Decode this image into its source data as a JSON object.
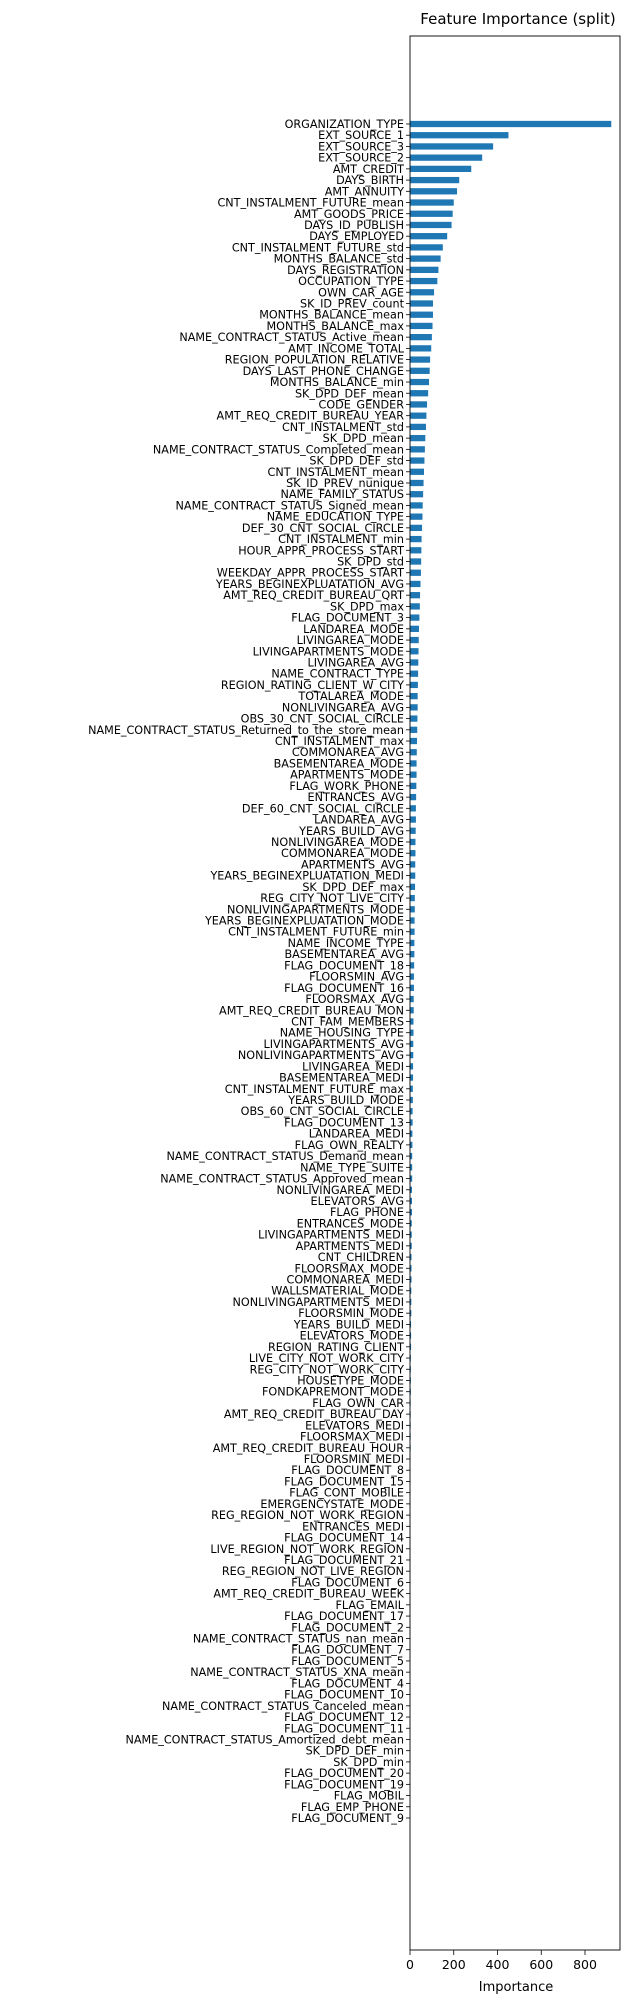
{
  "chart_data": {
    "type": "bar",
    "orientation": "horizontal",
    "title": "Feature Importance (split)",
    "xlabel": "Importance",
    "ylabel": "",
    "xlim": [
      0,
      960
    ],
    "xticks": [
      0,
      200,
      400,
      600,
      800
    ],
    "xtick_labels": [
      "0",
      "200",
      "400",
      "600",
      "800"
    ],
    "grid": false,
    "legend": "none",
    "bar_color": "#1f77b4",
    "categories": [
      "ORGANIZATION_TYPE",
      "EXT_SOURCE_1",
      "EXT_SOURCE_3",
      "EXT_SOURCE_2",
      "AMT_CREDIT",
      "DAYS_BIRTH",
      "AMT_ANNUITY",
      "CNT_INSTALMENT_FUTURE_mean",
      "AMT_GOODS_PRICE",
      "DAYS_ID_PUBLISH",
      "DAYS_EMPLOYED",
      "CNT_INSTALMENT_FUTURE_std",
      "MONTHS_BALANCE_std",
      "DAYS_REGISTRATION",
      "OCCUPATION_TYPE",
      "OWN_CAR_AGE",
      "SK_ID_PREV_count",
      "MONTHS_BALANCE_mean",
      "MONTHS_BALANCE_max",
      "NAME_CONTRACT_STATUS_Active_mean",
      "AMT_INCOME_TOTAL",
      "REGION_POPULATION_RELATIVE",
      "DAYS_LAST_PHONE_CHANGE",
      "MONTHS_BALANCE_min",
      "SK_DPD_DEF_mean",
      "CODE_GENDER",
      "AMT_REQ_CREDIT_BUREAU_YEAR",
      "CNT_INSTALMENT_std",
      "SK_DPD_mean",
      "NAME_CONTRACT_STATUS_Completed_mean",
      "SK_DPD_DEF_std",
      "CNT_INSTALMENT_mean",
      "SK_ID_PREV_nunique",
      "NAME_FAMILY_STATUS",
      "NAME_CONTRACT_STATUS_Signed_mean",
      "NAME_EDUCATION_TYPE",
      "DEF_30_CNT_SOCIAL_CIRCLE",
      "CNT_INSTALMENT_min",
      "HOUR_APPR_PROCESS_START",
      "SK_DPD_std",
      "WEEKDAY_APPR_PROCESS_START",
      "YEARS_BEGINEXPLUATATION_AVG",
      "AMT_REQ_CREDIT_BUREAU_QRT",
      "SK_DPD_max",
      "FLAG_DOCUMENT_3",
      "LANDAREA_MODE",
      "LIVINGAREA_MODE",
      "LIVINGAPARTMENTS_MODE",
      "LIVINGAREA_AVG",
      "NAME_CONTRACT_TYPE",
      "REGION_RATING_CLIENT_W_CITY",
      "TOTALAREA_MODE",
      "NONLIVINGAREA_AVG",
      "OBS_30_CNT_SOCIAL_CIRCLE",
      "NAME_CONTRACT_STATUS_Returned_to_the_store_mean",
      "CNT_INSTALMENT_max",
      "COMMONAREA_AVG",
      "BASEMENTAREA_MODE",
      "APARTMENTS_MODE",
      "FLAG_WORK_PHONE",
      "ENTRANCES_AVG",
      "DEF_60_CNT_SOCIAL_CIRCLE",
      "LANDAREA_AVG",
      "YEARS_BUILD_AVG",
      "NONLIVINGAREA_MODE",
      "COMMONAREA_MODE",
      "APARTMENTS_AVG",
      "YEARS_BEGINEXPLUATATION_MEDI",
      "SK_DPD_DEF_max",
      "REG_CITY_NOT_LIVE_CITY",
      "NONLIVINGAPARTMENTS_MODE",
      "YEARS_BEGINEXPLUATATION_MODE",
      "CNT_INSTALMENT_FUTURE_min",
      "NAME_INCOME_TYPE",
      "BASEMENTAREA_AVG",
      "FLAG_DOCUMENT_18",
      "FLOORSMIN_AVG",
      "FLAG_DOCUMENT_16",
      "FLOORSMAX_AVG",
      "AMT_REQ_CREDIT_BUREAU_MON",
      "CNT_FAM_MEMBERS",
      "NAME_HOUSING_TYPE",
      "LIVINGAPARTMENTS_AVG",
      "NONLIVINGAPARTMENTS_AVG",
      "LIVINGAREA_MEDI",
      "BASEMENTAREA_MEDI",
      "CNT_INSTALMENT_FUTURE_max",
      "YEARS_BUILD_MODE",
      "OBS_60_CNT_SOCIAL_CIRCLE",
      "FLAG_DOCUMENT_13",
      "LANDAREA_MEDI",
      "FLAG_OWN_REALTY",
      "NAME_CONTRACT_STATUS_Demand_mean",
      "NAME_TYPE_SUITE",
      "NAME_CONTRACT_STATUS_Approved_mean",
      "NONLIVINGAREA_MEDI",
      "ELEVATORS_AVG",
      "FLAG_PHONE",
      "ENTRANCES_MODE",
      "LIVINGAPARTMENTS_MEDI",
      "APARTMENTS_MEDI",
      "CNT_CHILDREN",
      "FLOORSMAX_MODE",
      "COMMONAREA_MEDI",
      "WALLSMATERIAL_MODE",
      "NONLIVINGAPARTMENTS_MEDI",
      "FLOORSMIN_MODE",
      "YEARS_BUILD_MEDI",
      "ELEVATORS_MODE",
      "REGION_RATING_CLIENT",
      "LIVE_CITY_NOT_WORK_CITY",
      "REG_CITY_NOT_WORK_CITY",
      "HOUSETYPE_MODE",
      "FONDKAPREMONT_MODE",
      "FLAG_OWN_CAR",
      "AMT_REQ_CREDIT_BUREAU_DAY",
      "ELEVATORS_MEDI",
      "FLOORSMAX_MEDI",
      "AMT_REQ_CREDIT_BUREAU_HOUR",
      "FLOORSMIN_MEDI",
      "FLAG_DOCUMENT_8",
      "FLAG_DOCUMENT_15",
      "FLAG_CONT_MOBILE",
      "EMERGENCYSTATE_MODE",
      "REG_REGION_NOT_WORK_REGION",
      "ENTRANCES_MEDI",
      "FLAG_DOCUMENT_14",
      "LIVE_REGION_NOT_WORK_REGION",
      "FLAG_DOCUMENT_21",
      "REG_REGION_NOT_LIVE_REGION",
      "FLAG_DOCUMENT_6",
      "AMT_REQ_CREDIT_BUREAU_WEEK",
      "FLAG_EMAIL",
      "FLAG_DOCUMENT_17",
      "FLAG_DOCUMENT_2",
      "NAME_CONTRACT_STATUS_nan_mean",
      "FLAG_DOCUMENT_7",
      "FLAG_DOCUMENT_5",
      "NAME_CONTRACT_STATUS_XNA_mean",
      "FLAG_DOCUMENT_4",
      "FLAG_DOCUMENT_10",
      "NAME_CONTRACT_STATUS_Canceled_mean",
      "FLAG_DOCUMENT_12",
      "FLAG_DOCUMENT_11",
      "NAME_CONTRACT_STATUS_Amortized_debt_mean",
      "SK_DPD_DEF_min",
      "SK_DPD_min",
      "FLAG_DOCUMENT_20",
      "FLAG_DOCUMENT_19",
      "FLAG_MOBIL",
      "FLAG_EMP_PHONE",
      "FLAG_DOCUMENT_9"
    ],
    "values": [
      920,
      450,
      380,
      330,
      280,
      225,
      215,
      200,
      195,
      190,
      170,
      150,
      140,
      130,
      125,
      110,
      105,
      105,
      103,
      100,
      97,
      92,
      90,
      87,
      83,
      78,
      75,
      73,
      70,
      68,
      66,
      64,
      62,
      60,
      58,
      57,
      55,
      53,
      52,
      51,
      50,
      48,
      46,
      45,
      43,
      41,
      40,
      39,
      38,
      37,
      36,
      35,
      35,
      34,
      33,
      32,
      31,
      30,
      30,
      29,
      28,
      27,
      27,
      26,
      25,
      25,
      24,
      24,
      23,
      22,
      22,
      21,
      21,
      20,
      20,
      19,
      18,
      18,
      17,
      17,
      16,
      16,
      15,
      15,
      14,
      14,
      13,
      13,
      12,
      12,
      11,
      11,
      10,
      10,
      10,
      9,
      9,
      9,
      8,
      8,
      8,
      7,
      7,
      7,
      6,
      6,
      6,
      5,
      5,
      5,
      4,
      4,
      4,
      4,
      3,
      3,
      3,
      3,
      3,
      2,
      2,
      2,
      2,
      2,
      2,
      1,
      1,
      1,
      1,
      1,
      1,
      1,
      1,
      0,
      0,
      0,
      0,
      0,
      0,
      0,
      0,
      0,
      0,
      0,
      0,
      0,
      0,
      0,
      0,
      0,
      0,
      0
    ]
  }
}
